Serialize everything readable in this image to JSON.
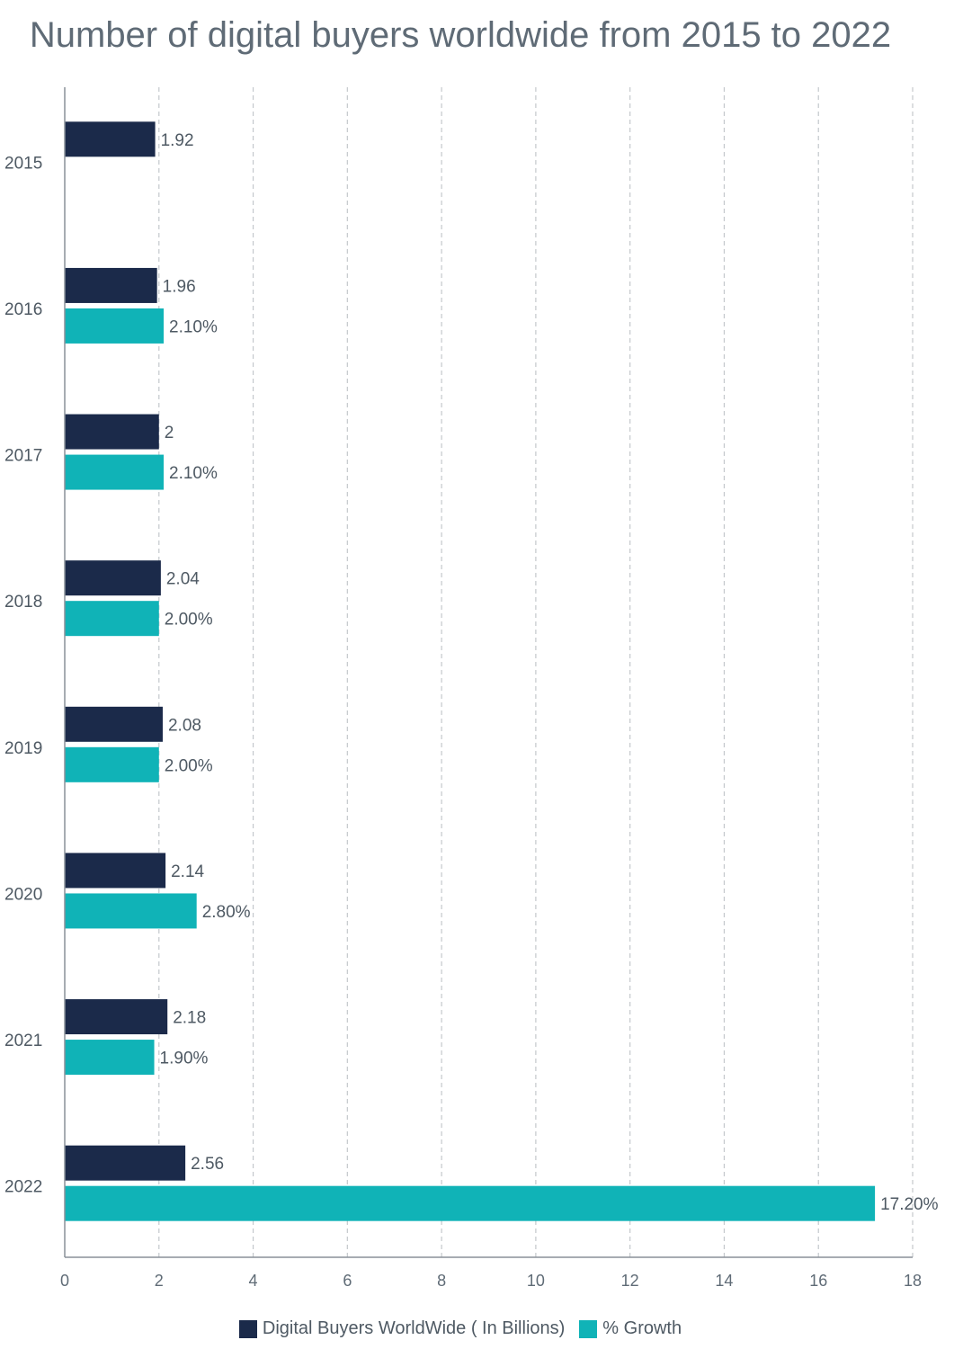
{
  "chart_data": {
    "type": "bar",
    "orientation": "horizontal",
    "title": "Number of digital buyers worldwide from 2015 to 2022",
    "categories": [
      "2015",
      "2016",
      "2017",
      "2018",
      "2019",
      "2020",
      "2021",
      "2022"
    ],
    "series": [
      {
        "name": "Digital Buyers WorldWide ( In Billions)",
        "color": "#1b2a4a",
        "values": [
          1.92,
          1.96,
          2,
          2.04,
          2.08,
          2.14,
          2.18,
          2.56
        ],
        "labels": [
          "1.92",
          "1.96",
          "2",
          "2.04",
          "2.08",
          "2.14",
          "2.18",
          "2.56"
        ]
      },
      {
        "name": "% Growth",
        "color": "#10b3b7",
        "values": [
          null,
          2.1,
          2.1,
          2.0,
          2.0,
          2.8,
          1.9,
          17.2
        ],
        "labels": [
          "",
          "2.10%",
          "2.10%",
          "2.00%",
          "2.00%",
          "2.80%",
          "1.90%",
          "17.20%"
        ]
      }
    ],
    "xlim": [
      0,
      18
    ],
    "xticks": [
      0,
      2,
      4,
      6,
      8,
      10,
      12,
      14,
      16,
      18
    ],
    "grid": true,
    "legend": "bottom"
  }
}
